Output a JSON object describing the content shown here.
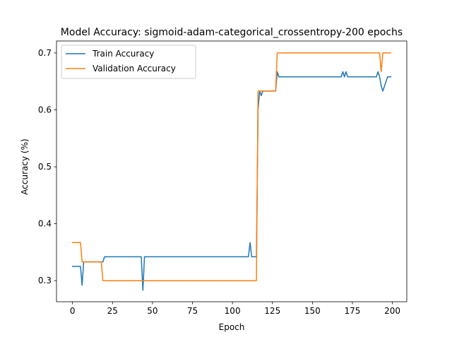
{
  "chart_data": {
    "type": "line",
    "title": "Model Accuracy: sigmoid-adam-categorical_crossentropy-200 epochs",
    "xlabel": "Epoch",
    "ylabel": "Accuracy (%)",
    "xlim": [
      -10,
      209
    ],
    "ylim": [
      0.263,
      0.721
    ],
    "xticks": [
      0,
      25,
      50,
      75,
      100,
      125,
      150,
      175,
      200
    ],
    "yticks": [
      0.3,
      0.4,
      0.5,
      0.6,
      0.7
    ],
    "grid": false,
    "legend_position": "upper-left",
    "series": [
      {
        "name": "Train Accuracy",
        "color": "#1f77b4",
        "x": [
          0,
          5,
          6,
          7,
          17,
          18,
          19,
          20,
          43,
          44,
          45,
          110,
          111,
          112,
          115,
          116,
          117,
          118,
          119,
          127,
          128,
          129,
          168,
          169,
          170,
          171,
          172,
          173,
          190,
          191,
          192,
          193,
          194,
          197,
          199
        ],
        "y": [
          0.325,
          0.325,
          0.292,
          0.333,
          0.333,
          0.333,
          0.333,
          0.342,
          0.342,
          0.283,
          0.342,
          0.342,
          0.367,
          0.342,
          0.342,
          0.6,
          0.633,
          0.625,
          0.633,
          0.633,
          0.667,
          0.658,
          0.658,
          0.667,
          0.658,
          0.667,
          0.658,
          0.658,
          0.658,
          0.667,
          0.658,
          0.642,
          0.633,
          0.658,
          0.658
        ]
      },
      {
        "name": "Validation Accuracy",
        "color": "#ff7f0e",
        "x": [
          0,
          5,
          6,
          17,
          18,
          19,
          115,
          116,
          127,
          128,
          192,
          193,
          194,
          199
        ],
        "y": [
          0.367,
          0.367,
          0.333,
          0.333,
          0.333,
          0.3,
          0.3,
          0.633,
          0.633,
          0.7,
          0.7,
          0.667,
          0.7,
          0.7
        ]
      }
    ]
  }
}
